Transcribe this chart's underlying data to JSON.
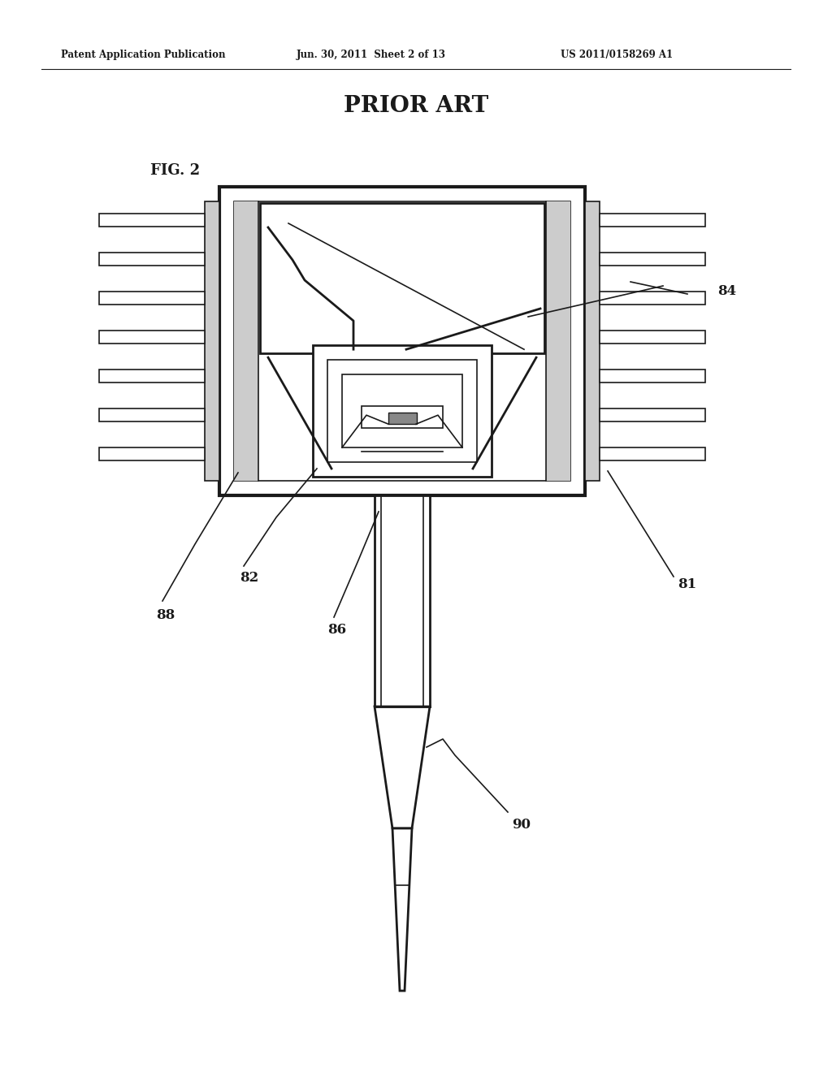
{
  "title_header_left": "Patent Application Publication",
  "title_header_mid": "Jun. 30, 2011  Sheet 2 of 13",
  "title_header_right": "US 2011/0158269 A1",
  "prior_art_title": "PRIOR ART",
  "fig_label": "FIG. 2",
  "bg_color": "#ffffff",
  "line_color": "#1a1a1a",
  "gray_fill": "#d0d0d0",
  "light_gray": "#e8e8e8"
}
